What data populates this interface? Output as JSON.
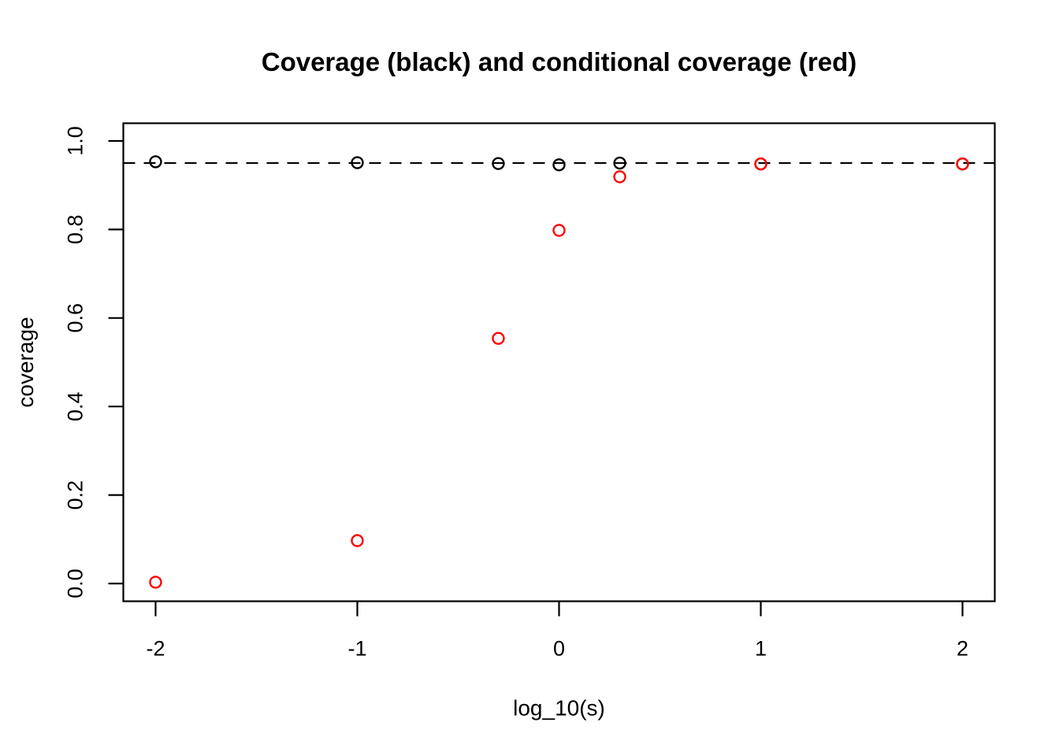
{
  "title": "Coverage (black) and conditional coverage (red)",
  "colors": {
    "foreground": "#000000",
    "coverage_series": "#000000",
    "conditional_series": "#FF0000",
    "background": "#FFFFFF"
  },
  "chart_data": {
    "type": "scatter",
    "title": "Coverage (black) and conditional coverage (red)",
    "xlabel": "log_10(s)",
    "ylabel": "coverage",
    "xlim": [
      -2.16,
      2.16
    ],
    "ylim": [
      -0.04,
      1.04
    ],
    "grid": false,
    "legend_position": "none",
    "x_tick_labels": [
      "-2",
      "-1",
      "0",
      "1",
      "2"
    ],
    "x_tick_values": [
      -2,
      -1,
      0,
      1,
      2
    ],
    "y_tick_labels": [
      "0.0",
      "0.2",
      "0.4",
      "0.6",
      "0.8",
      "1.0"
    ],
    "y_tick_values": [
      0.0,
      0.2,
      0.4,
      0.6,
      0.8,
      1.0
    ],
    "reference_line": {
      "y": 0.95,
      "style": "dashed",
      "color": "#000000"
    },
    "x": [
      -2,
      -1,
      -0.301,
      0,
      0.301,
      1,
      2
    ],
    "series": [
      {
        "name": "coverage",
        "color": "#000000",
        "marker": "open-circle",
        "values": [
          0.953,
          0.951,
          0.949,
          0.946,
          0.95,
          0.948,
          0.948
        ]
      },
      {
        "name": "conditional coverage",
        "color": "#FF0000",
        "marker": "open-circle",
        "values": [
          0.003,
          0.097,
          0.554,
          0.798,
          0.919,
          0.948,
          0.948
        ]
      }
    ]
  }
}
